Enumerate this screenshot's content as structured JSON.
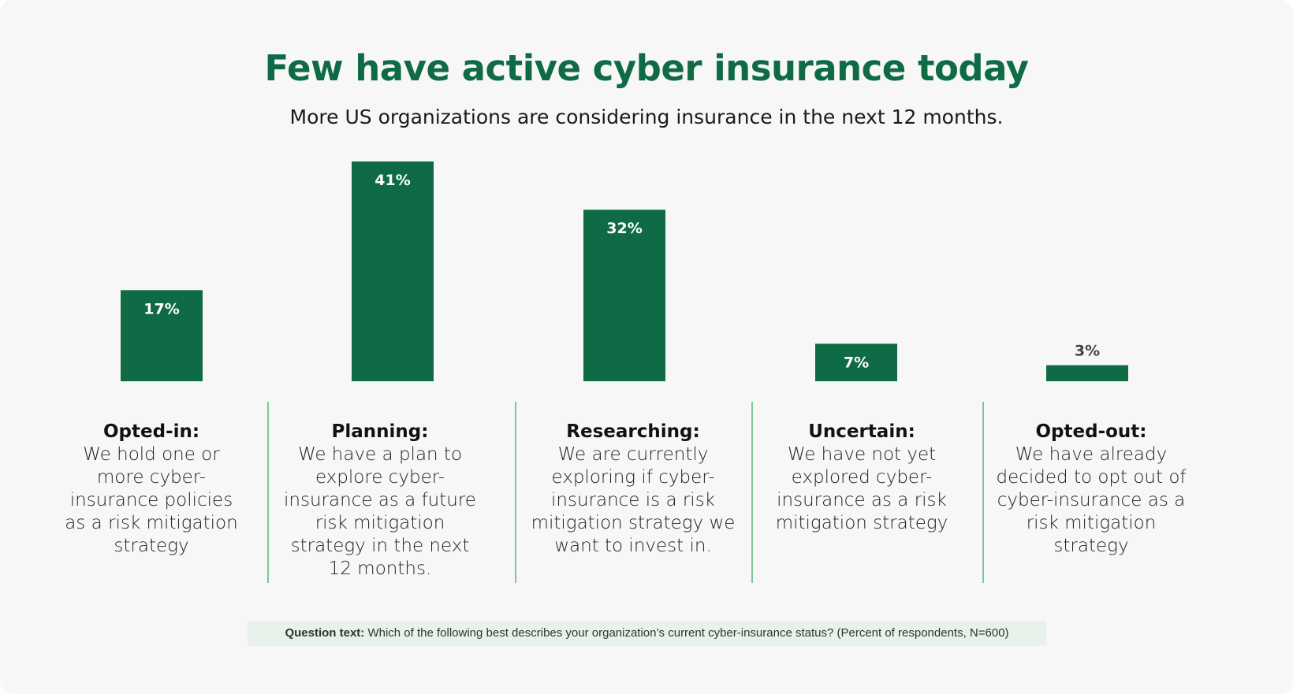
{
  "header": {
    "title": "Few have active cyber insurance today",
    "subtitle": "More US organizations are considering insurance in the next 12 months."
  },
  "colors": {
    "bar": "#0e6b45",
    "divider": "#7fc79a",
    "footnote_bg": "#e6f2ea"
  },
  "chart_data": {
    "type": "bar",
    "title": "Few have active cyber insurance today",
    "subtitle": "More US organizations are considering insurance in the next 12 months.",
    "categories": [
      "Opted-in",
      "Planning",
      "Researching",
      "Uncertain",
      "Opted-out"
    ],
    "values": [
      17,
      41,
      32,
      7,
      3
    ],
    "value_labels": [
      "17%",
      "41%",
      "32%",
      "7%",
      "3%"
    ],
    "unit": "%",
    "ylim": [
      0,
      41
    ],
    "grid": false,
    "legend": "none"
  },
  "columns": [
    {
      "head": "Opted-in:",
      "lines": [
        "We hold one or",
        "more cyber-",
        "insurance policies",
        "as a risk mitigation",
        "strategy"
      ]
    },
    {
      "head": "Planning:",
      "lines": [
        "We have a plan to",
        "explore cyber-",
        "insurance as a future",
        "risk mitigation",
        "strategy in the next",
        "12 months."
      ]
    },
    {
      "head": "Researching:",
      "lines": [
        "We are currently",
        "exploring if cyber-",
        "insurance is a risk",
        "mitigation strategy we",
        "want to invest in."
      ]
    },
    {
      "head": "Uncertain:",
      "lines": [
        "We have not yet",
        "explored cyber-",
        "insurance as a risk",
        "mitigation strategy"
      ]
    },
    {
      "head": "Opted-out:",
      "lines": [
        "We have already",
        "decided to opt out of",
        "cyber-insurance as a",
        "risk mitigation",
        "strategy"
      ]
    }
  ],
  "footnote": {
    "label": "Question text:",
    "text": " Which of the following best describes your organization’s current cyber-insurance status? (Percent of respondents, N=600)"
  }
}
